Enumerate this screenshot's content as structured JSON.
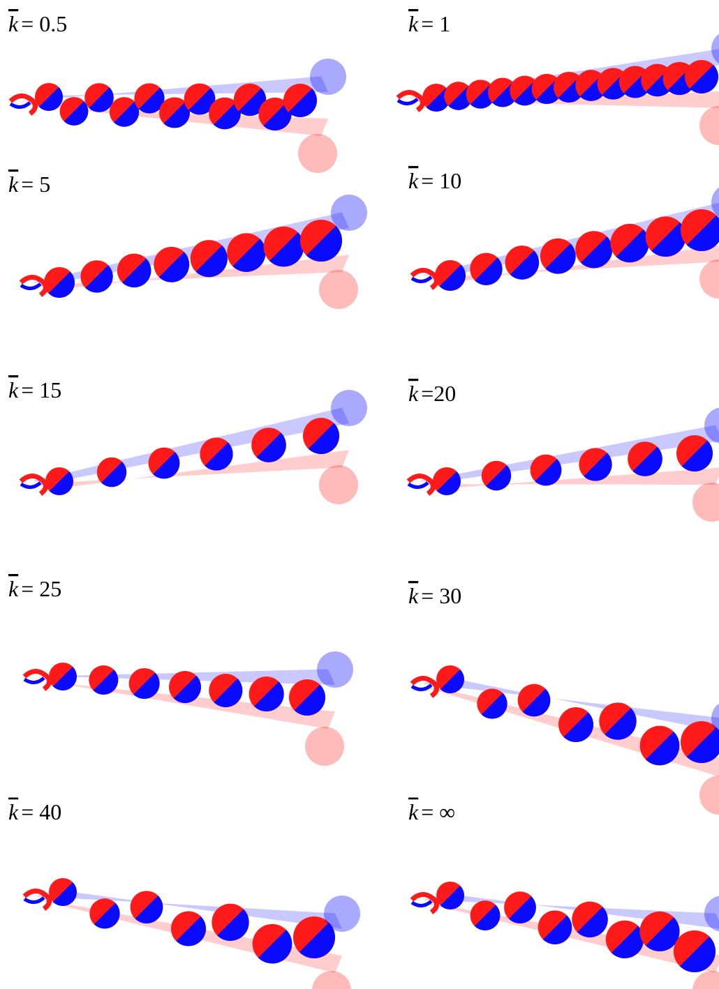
{
  "panels": [
    {
      "symbol": "k",
      "label": "= 0.5"
    },
    {
      "symbol": "k",
      "label": "= 1"
    },
    {
      "symbol": "k",
      "label": "= 5"
    },
    {
      "symbol": "k",
      "label": "= 10"
    },
    {
      "symbol": "k",
      "label": "= 15"
    },
    {
      "symbol": "k",
      "label": "=20"
    },
    {
      "symbol": "k",
      "label": "= 25"
    },
    {
      "symbol": "k",
      "label": "= 30"
    },
    {
      "symbol": "k",
      "label": "= 40"
    },
    {
      "symbol": "k",
      "label": "= ∞"
    }
  ]
}
